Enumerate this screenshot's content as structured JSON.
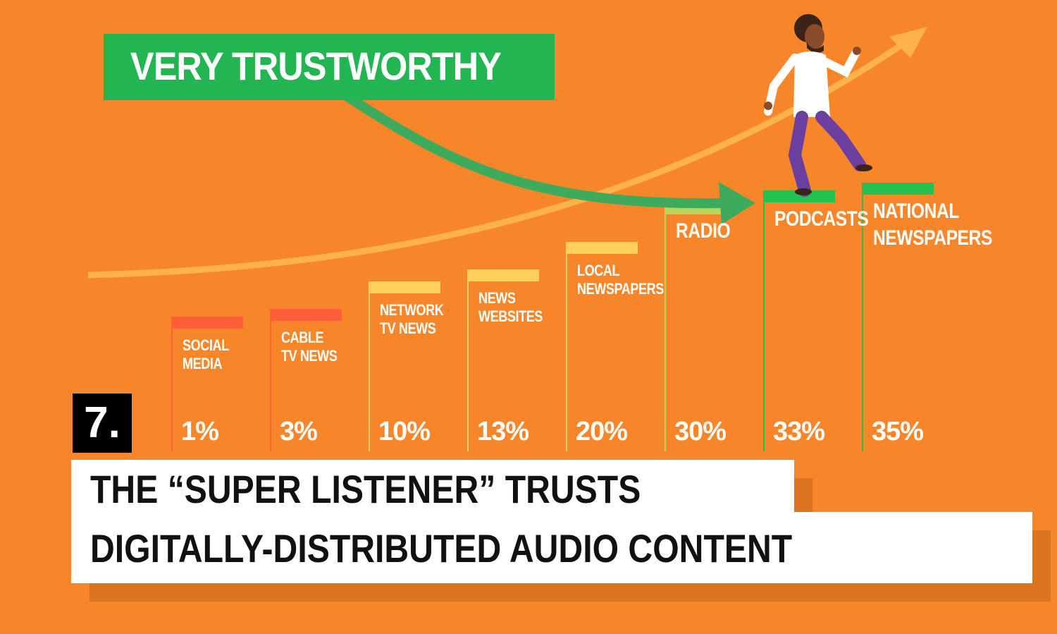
{
  "banner": {
    "text": "VERY TRUSTWORTHY"
  },
  "item_number": "7.",
  "headline": {
    "line1": "THE “SUPER LISTENER” TRUSTS",
    "line2": "DIGITALLY-DISTRIBUTED AUDIO CONTENT"
  },
  "colors": {
    "background": "#F7862A",
    "banner": "#22B551",
    "low": "#FF5E3A",
    "medium": "#FFD15C",
    "radio": "#B5D65A",
    "high": "#22C150"
  },
  "chart_data": {
    "type": "bar",
    "categories": [
      [
        "SOCIAL",
        "MEDIA"
      ],
      [
        "CABLE",
        "TV NEWS"
      ],
      [
        "NETWORK",
        "TV NEWS"
      ],
      [
        "NEWS",
        "WEBSITES"
      ],
      [
        "LOCAL",
        "NEWSPAPERS"
      ],
      [
        "RADIO"
      ],
      [
        "PODCASTS"
      ],
      [
        "NATIONAL",
        "NEWSPAPERS"
      ]
    ],
    "values": [
      1,
      3,
      10,
      13,
      20,
      30,
      33,
      35
    ],
    "value_labels": [
      "1%",
      "3%",
      "10%",
      "13%",
      "20%",
      "30%",
      "33%",
      "35%"
    ],
    "bar_colors": [
      "#FF5E3A",
      "#FF5E3A",
      "#FFD15C",
      "#FFD15C",
      "#FFD15C",
      "#B5D65A",
      "#22C150",
      "#22C150"
    ],
    "ylabel": "",
    "xlabel": ""
  }
}
